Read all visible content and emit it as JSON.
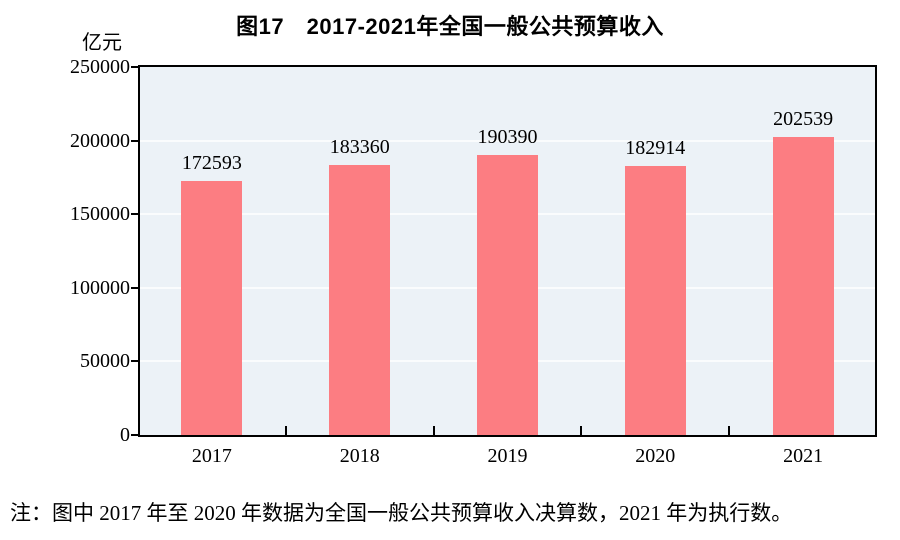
{
  "title": "图17　2017-2021年全国一般公共预算收入",
  "y_axis_unit": "亿元",
  "note": "注：图中 2017 年至 2020 年数据为全国一般公共预算收入决算数，2021 年为执行数。",
  "chart_data": {
    "type": "bar",
    "title": "图17　2017-2021年全国一般公共预算收入",
    "categories": [
      "2017",
      "2018",
      "2019",
      "2020",
      "2021"
    ],
    "values": [
      172593,
      183360,
      190390,
      182914,
      202539
    ],
    "data_labels": [
      "172593",
      "183360",
      "190390",
      "182914",
      "202539"
    ],
    "xlabel": "",
    "ylabel": "亿元",
    "ylim": [
      0,
      250000
    ],
    "ytick_step": 50000,
    "ytick_labels": [
      "0",
      "50000",
      "100000",
      "150000",
      "200000",
      "250000"
    ],
    "grid": true,
    "legend_position": "none",
    "colors": {
      "bar": "#FC7D82",
      "plot_background": "#ECF2F7",
      "gridline": "#FAFCFD",
      "axis": "#000000",
      "text": "#000000"
    }
  }
}
